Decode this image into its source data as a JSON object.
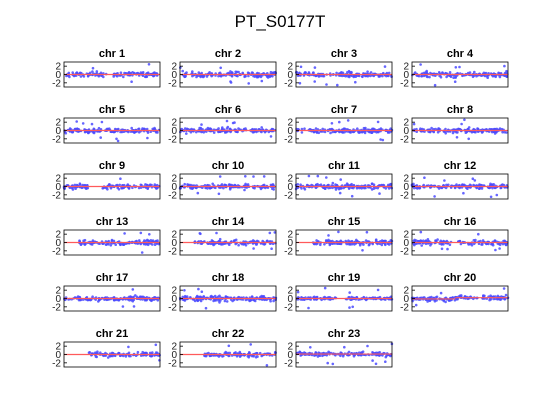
{
  "figure": {
    "title": "PT_S0177T",
    "point_color": "#4a4aff",
    "segment_color": "#ff5a5a",
    "frame_color": "#000000"
  },
  "chart_data": {
    "type": "scatter",
    "title": "PT_S0177T",
    "xlabel": "",
    "ylabel": "",
    "ylim": [
      -3,
      3
    ],
    "yticks": [
      2,
      0,
      -2
    ],
    "grid": false,
    "legend": "none",
    "panels": [
      {
        "title": "chr 1",
        "gaps": [
          [
            0.44,
            0.51
          ]
        ],
        "spread": 0.55,
        "segments": [
          {
            "x0": 0,
            "x1": 1,
            "y": 0
          }
        ]
      },
      {
        "title": "chr 2",
        "gaps": [],
        "spread": 0.6,
        "segments": [
          {
            "x0": 0,
            "x1": 1,
            "y": 0
          }
        ]
      },
      {
        "title": "chr 3",
        "gaps": [],
        "spread": 0.55,
        "segments": [
          {
            "x0": 0,
            "x1": 1,
            "y": 0
          }
        ]
      },
      {
        "title": "chr 4",
        "gaps": [],
        "spread": 0.55,
        "segments": [
          {
            "x0": 0,
            "x1": 1,
            "y": 0
          }
        ]
      },
      {
        "title": "chr 5",
        "gaps": [],
        "spread": 0.5,
        "segments": [
          {
            "x0": 0,
            "x1": 1,
            "y": 0
          }
        ]
      },
      {
        "title": "chr 6",
        "gaps": [],
        "spread": 0.55,
        "segments": [
          {
            "x0": 0,
            "x1": 1,
            "y": 0
          }
        ]
      },
      {
        "title": "chr 7",
        "gaps": [],
        "spread": 0.5,
        "segments": [
          {
            "x0": 0,
            "x1": 1,
            "y": 0
          }
        ]
      },
      {
        "title": "chr 8",
        "gaps": [],
        "spread": 0.5,
        "segments": [
          {
            "x0": 0,
            "x1": 1,
            "y": 0
          }
        ]
      },
      {
        "title": "chr 9",
        "gaps": [
          [
            0.27,
            0.4
          ]
        ],
        "spread": 0.55,
        "segments": [
          {
            "x0": 0,
            "x1": 1,
            "y": 0
          }
        ]
      },
      {
        "title": "chr 10",
        "gaps": [],
        "spread": 0.55,
        "segments": [
          {
            "x0": 0,
            "x1": 1,
            "y": 0
          }
        ]
      },
      {
        "title": "chr 11",
        "gaps": [],
        "spread": 0.55,
        "segments": [
          {
            "x0": 0,
            "x1": 1,
            "y": 0
          }
        ]
      },
      {
        "title": "chr 12",
        "gaps": [],
        "spread": 0.45,
        "segments": [
          {
            "x0": 0,
            "x1": 1,
            "y": 0
          }
        ]
      },
      {
        "title": "chr 13",
        "gaps": [
          [
            0.0,
            0.16
          ]
        ],
        "spread": 0.55,
        "segments": [
          {
            "x0": 0,
            "x1": 1,
            "y": 0
          }
        ]
      },
      {
        "title": "chr 14",
        "gaps": [
          [
            0.0,
            0.15
          ]
        ],
        "spread": 0.55,
        "segments": [
          {
            "x0": 0,
            "x1": 1,
            "y": 0
          }
        ]
      },
      {
        "title": "chr 15",
        "gaps": [
          [
            0.0,
            0.17
          ]
        ],
        "spread": 0.55,
        "segments": [
          {
            "x0": 0,
            "x1": 1,
            "y": 0
          }
        ]
      },
      {
        "title": "chr 16",
        "gaps": [
          [
            0.41,
            0.48
          ]
        ],
        "spread": 0.55,
        "segments": [
          {
            "x0": 0,
            "x1": 1,
            "y": 0
          }
        ]
      },
      {
        "title": "chr 17",
        "gaps": [],
        "spread": 0.45,
        "segments": [
          {
            "x0": 0,
            "x1": 1,
            "y": 0
          }
        ]
      },
      {
        "title": "chr 18",
        "gaps": [],
        "spread": 0.55,
        "segments": [
          {
            "x0": 0,
            "x1": 1,
            "y": 0
          }
        ]
      },
      {
        "title": "chr 19",
        "gaps": [
          [
            0.42,
            0.52
          ]
        ],
        "spread": 0.35,
        "segments": [
          {
            "x0": 0,
            "x1": 1,
            "y": 0
          }
        ]
      },
      {
        "title": "chr 20",
        "gaps": [],
        "spread": 0.5,
        "segments": [
          {
            "x0": 0,
            "x1": 0.45,
            "y": -0.1
          },
          {
            "x0": 0.45,
            "x1": 1,
            "y": 0.2
          }
        ]
      },
      {
        "title": "chr 21",
        "gaps": [
          [
            0.0,
            0.25
          ]
        ],
        "spread": 0.5,
        "segments": [
          {
            "x0": 0,
            "x1": 1,
            "y": 0
          }
        ]
      },
      {
        "title": "chr 22",
        "gaps": [
          [
            0.0,
            0.25
          ]
        ],
        "spread": 0.5,
        "segments": [
          {
            "x0": 0,
            "x1": 1,
            "y": 0
          }
        ]
      },
      {
        "title": "chr 23",
        "gaps": [],
        "spread": 0.45,
        "segments": [
          {
            "x0": 0,
            "x1": 1,
            "y": 0.1
          }
        ]
      }
    ]
  }
}
